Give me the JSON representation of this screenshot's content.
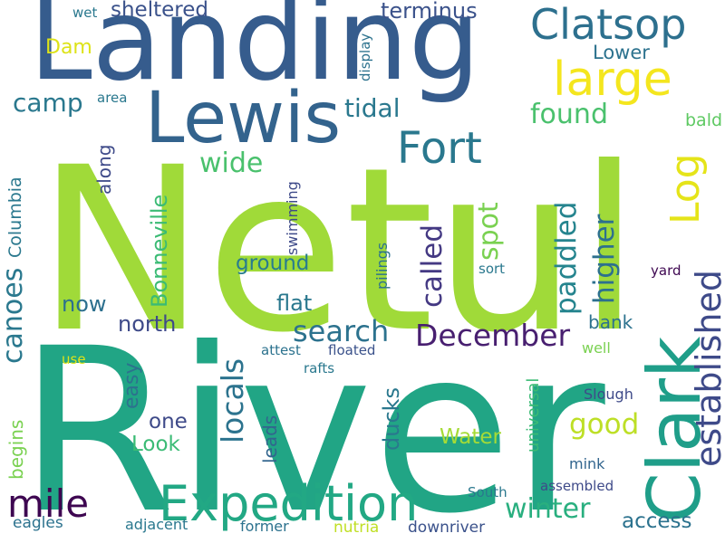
{
  "words": [
    {
      "text": "Netul",
      "color": "#a0da39"
    },
    {
      "text": "River",
      "color": "#21a585"
    },
    {
      "text": "Landing",
      "color": "#365c8d"
    },
    {
      "text": "Lewis",
      "color": "#33638d"
    },
    {
      "text": "Clark",
      "color": "#1f9e89"
    },
    {
      "text": "Expedition",
      "color": "#22a884"
    },
    {
      "text": "Clatsop",
      "color": "#2d708e"
    },
    {
      "text": "Fort",
      "color": "#2a788e"
    },
    {
      "text": "large",
      "color": "#f4e61e"
    },
    {
      "text": "mile",
      "color": "#3e0751"
    },
    {
      "text": "Log",
      "color": "#e5e419"
    },
    {
      "text": "established",
      "color": "#3e4a89"
    },
    {
      "text": "December",
      "color": "#481f70"
    },
    {
      "text": "search",
      "color": "#2c728e"
    },
    {
      "text": "winter",
      "color": "#29af7f"
    },
    {
      "text": "good",
      "color": "#bddf26"
    },
    {
      "text": "locals",
      "color": "#2c738e"
    },
    {
      "text": "found",
      "color": "#4ac16d"
    },
    {
      "text": "wide",
      "color": "#4ac16d"
    },
    {
      "text": "higher",
      "color": "#2d708e"
    },
    {
      "text": "paddled",
      "color": "#25848e"
    },
    {
      "text": "called",
      "color": "#443983"
    },
    {
      "text": "spot",
      "color": "#7ad151"
    },
    {
      "text": "camp",
      "color": "#2a788e"
    },
    {
      "text": "tidal",
      "color": "#2a788e"
    },
    {
      "text": "canoes",
      "color": "#2a788e"
    },
    {
      "text": "access",
      "color": "#2c728e"
    },
    {
      "text": "Look",
      "color": "#3bbb75"
    },
    {
      "text": "flat",
      "color": "#2a788e"
    },
    {
      "text": "ground",
      "color": "#287c8e"
    },
    {
      "text": "now",
      "color": "#2d708e"
    },
    {
      "text": "north",
      "color": "#3e4a89"
    },
    {
      "text": "Water",
      "color": "#a5db36"
    },
    {
      "text": "terminus",
      "color": "#3b528b"
    },
    {
      "text": "sheltered",
      "color": "#3b528b"
    },
    {
      "text": "Bonneville",
      "color": "#3bbb75"
    },
    {
      "text": "ducks",
      "color": "#2a788e"
    },
    {
      "text": "easy",
      "color": "#2c728e"
    },
    {
      "text": "one",
      "color": "#3e4a89"
    },
    {
      "text": "bank",
      "color": "#2c728e"
    },
    {
      "text": "Lower",
      "color": "#2c728e"
    },
    {
      "text": "Dam",
      "color": "#dde318"
    },
    {
      "text": "leads",
      "color": "#32658e"
    },
    {
      "text": "begins",
      "color": "#7ad151"
    },
    {
      "text": "along",
      "color": "#3e4a89"
    },
    {
      "text": "Columbia",
      "color": "#2a788e"
    },
    {
      "text": "universal",
      "color": "#3bbb75"
    },
    {
      "text": "bald",
      "color": "#5ec962"
    },
    {
      "text": "eagles",
      "color": "#2c728e"
    },
    {
      "text": "nutria",
      "color": "#c0df25"
    },
    {
      "text": "downriver",
      "color": "#3b528b"
    },
    {
      "text": "adjacent",
      "color": "#2a788e"
    },
    {
      "text": "former",
      "color": "#2c728e"
    },
    {
      "text": "assembled",
      "color": "#3e4a89"
    },
    {
      "text": "South",
      "color": "#2a788e"
    },
    {
      "text": "mink",
      "color": "#32658e"
    },
    {
      "text": "Slough",
      "color": "#3e4a89"
    },
    {
      "text": "well",
      "color": "#7ad151"
    },
    {
      "text": "rafts",
      "color": "#2a788e"
    },
    {
      "text": "floated",
      "color": "#3b528b"
    },
    {
      "text": "attest",
      "color": "#2c728e"
    },
    {
      "text": "use",
      "color": "#dde318"
    },
    {
      "text": "sort",
      "color": "#2a788e"
    },
    {
      "text": "yard",
      "color": "#3e0751"
    },
    {
      "text": "swimming",
      "color": "#3e4a89"
    },
    {
      "text": "pilings",
      "color": "#2c728e"
    },
    {
      "text": "area",
      "color": "#2a788e"
    },
    {
      "text": "display",
      "color": "#2c728e"
    },
    {
      "text": "wet",
      "color": "#2a788e"
    }
  ]
}
